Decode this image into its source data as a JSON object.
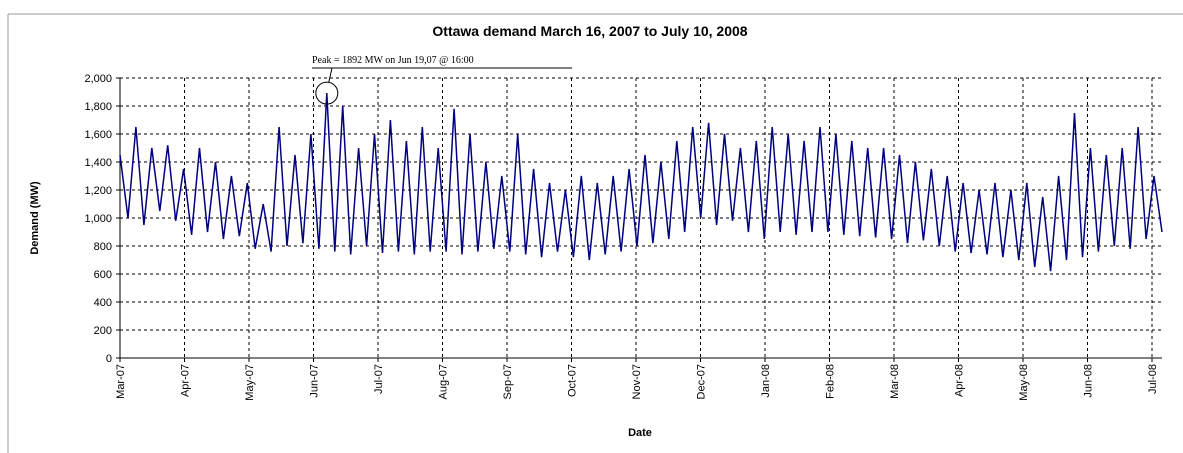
{
  "chart_data": {
    "type": "line",
    "title": "Ottawa demand March 16, 2007 to July 10, 2008",
    "y_label": "Demand (MW)",
    "x_label": "Date",
    "annotation": "Peak = 1892 MW on Jun 19,07 @ 16:00",
    "x_tick_labels": [
      "Mar-07",
      "Apr-07",
      "May-07",
      "Jun-07",
      "Jul-07",
      "Aug-07",
      "Sep-07",
      "Oct-07",
      "Nov-07",
      "Dec-07",
      "Jan-08",
      "Feb-08",
      "Mar-08",
      "Apr-08",
      "May-08",
      "Jun-08",
      "Jul-08"
    ],
    "color": "#000080",
    "values": [
      1450,
      1000,
      1650,
      950,
      1500,
      1050,
      1520,
      980,
      1350,
      880,
      1500,
      900,
      1400,
      850,
      1300,
      870,
      1250,
      780,
      1100,
      760,
      1650,
      800,
      1450,
      820,
      1600,
      780,
      1892,
      760,
      1800,
      740,
      1500,
      800,
      1600,
      750,
      1700,
      760,
      1550,
      740,
      1650,
      760,
      1500,
      760,
      1780,
      740,
      1600,
      760,
      1400,
      780,
      1300,
      760,
      1600,
      740,
      1350,
      720,
      1250,
      760,
      1200,
      720,
      1300,
      700,
      1250,
      740,
      1300,
      760,
      1350,
      800,
      1450,
      820,
      1400,
      850,
      1550,
      900,
      1650,
      1000,
      1680,
      950,
      1600,
      980,
      1500,
      900,
      1550,
      850,
      1650,
      900,
      1600,
      880,
      1550,
      900,
      1650,
      900,
      1600,
      880,
      1550,
      870,
      1500,
      860,
      1500,
      850,
      1450,
      820,
      1400,
      840,
      1350,
      800,
      1300,
      760,
      1250,
      750,
      1200,
      740,
      1250,
      720,
      1200,
      700,
      1250,
      650,
      1150,
      620,
      1300,
      700,
      1750,
      720,
      1500,
      760,
      1450,
      800,
      1500,
      780,
      1650,
      850,
      1300,
      900
    ],
    "ylim": [
      0,
      2000
    ],
    "yticks": [
      0,
      200,
      400,
      600,
      800,
      {
        "value": 1000,
        "label": "1,000"
      },
      {
        "value": 1200,
        "label": "1,200"
      },
      {
        "value": 1400,
        "label": "1,400"
      },
      {
        "value": 1600,
        "label": "1,600"
      },
      {
        "value": 1800,
        "label": "1,800"
      },
      {
        "value": 2000,
        "label": "2,000"
      }
    ],
    "grid": true
  }
}
